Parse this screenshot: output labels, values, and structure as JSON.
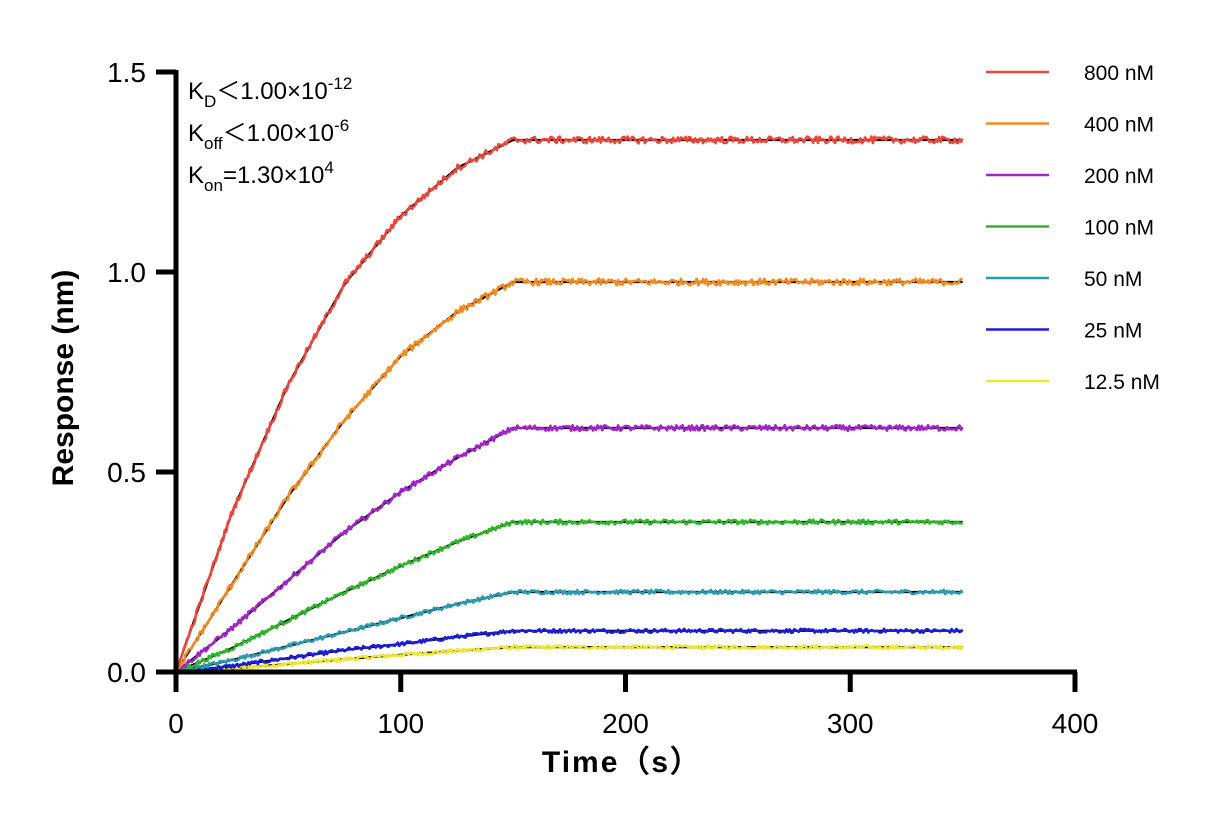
{
  "chart_data": {
    "type": "line",
    "title": "",
    "xlabel": "Time（s）",
    "ylabel": "Response (nm)",
    "xlim": [
      0,
      400
    ],
    "ylim": [
      0,
      1.5
    ],
    "x_ticks": [
      0,
      100,
      200,
      300,
      400
    ],
    "x_tick_labels": [
      "0",
      "100",
      "200",
      "300",
      "400"
    ],
    "y_ticks": [
      0.0,
      0.5,
      1.0,
      1.5
    ],
    "y_tick_labels": [
      "0.0",
      "0.5",
      "1.0",
      "1.5"
    ],
    "grid": false,
    "legend_position": "right",
    "association_end": 150,
    "end_time": 350,
    "fit_color": "#000000",
    "annotations": {
      "kd": {
        "main": "K",
        "sub": "D",
        "rel": "＜1.00×10",
        "exp": "-12"
      },
      "koff": {
        "main": "K",
        "sub": "off",
        "rel": "＜1.00×10",
        "exp": "-6"
      },
      "kon": {
        "main": "K",
        "sub": "on",
        "rel": "=1.30×10",
        "exp": "4"
      }
    },
    "series": [
      {
        "name": "800 nM",
        "color": "#e8473c",
        "plateau": 1.33,
        "values": [
          [
            0,
            0
          ],
          [
            25,
            0.4
          ],
          [
            50,
            0.72
          ],
          [
            75,
            0.97
          ],
          [
            100,
            1.14
          ],
          [
            125,
            1.26
          ],
          [
            150,
            1.33
          ],
          [
            350,
            1.33
          ]
        ]
      },
      {
        "name": "400 nM",
        "color": "#f28a1f",
        "plateau": 0.975,
        "values": [
          [
            0,
            0
          ],
          [
            25,
            0.22
          ],
          [
            50,
            0.44
          ],
          [
            75,
            0.63
          ],
          [
            100,
            0.79
          ],
          [
            125,
            0.9
          ],
          [
            150,
            0.975
          ],
          [
            350,
            0.975
          ]
        ]
      },
      {
        "name": "200 nM",
        "color": "#a026c9",
        "plateau": 0.61,
        "values": [
          [
            0,
            0
          ],
          [
            25,
            0.11
          ],
          [
            50,
            0.23
          ],
          [
            75,
            0.35
          ],
          [
            100,
            0.45
          ],
          [
            125,
            0.535
          ],
          [
            150,
            0.61
          ],
          [
            350,
            0.61
          ]
        ]
      },
      {
        "name": "100 nM",
        "color": "#2fb52a",
        "plateau": 0.375,
        "values": [
          [
            0,
            0
          ],
          [
            25,
            0.06
          ],
          [
            50,
            0.13
          ],
          [
            75,
            0.2
          ],
          [
            100,
            0.265
          ],
          [
            125,
            0.325
          ],
          [
            150,
            0.375
          ],
          [
            350,
            0.375
          ]
        ]
      },
      {
        "name": "50 nM",
        "color": "#2a9ab0",
        "plateau": 0.2,
        "values": [
          [
            0,
            0
          ],
          [
            25,
            0.03
          ],
          [
            50,
            0.065
          ],
          [
            75,
            0.1
          ],
          [
            100,
            0.135
          ],
          [
            125,
            0.17
          ],
          [
            150,
            0.2
          ],
          [
            350,
            0.2
          ]
        ]
      },
      {
        "name": "25 nM",
        "color": "#1a1fd6",
        "plateau": 0.103,
        "values": [
          [
            0,
            0
          ],
          [
            25,
            0.015
          ],
          [
            50,
            0.035
          ],
          [
            75,
            0.055
          ],
          [
            100,
            0.07
          ],
          [
            125,
            0.088
          ],
          [
            150,
            0.103
          ],
          [
            350,
            0.103
          ]
        ]
      },
      {
        "name": "12.5 nM",
        "color": "#f2e62a",
        "plateau": 0.062,
        "values": [
          [
            0,
            0
          ],
          [
            25,
            0.009
          ],
          [
            50,
            0.02
          ],
          [
            75,
            0.032
          ],
          [
            100,
            0.043
          ],
          [
            125,
            0.053
          ],
          [
            150,
            0.062
          ],
          [
            350,
            0.062
          ]
        ]
      }
    ]
  }
}
